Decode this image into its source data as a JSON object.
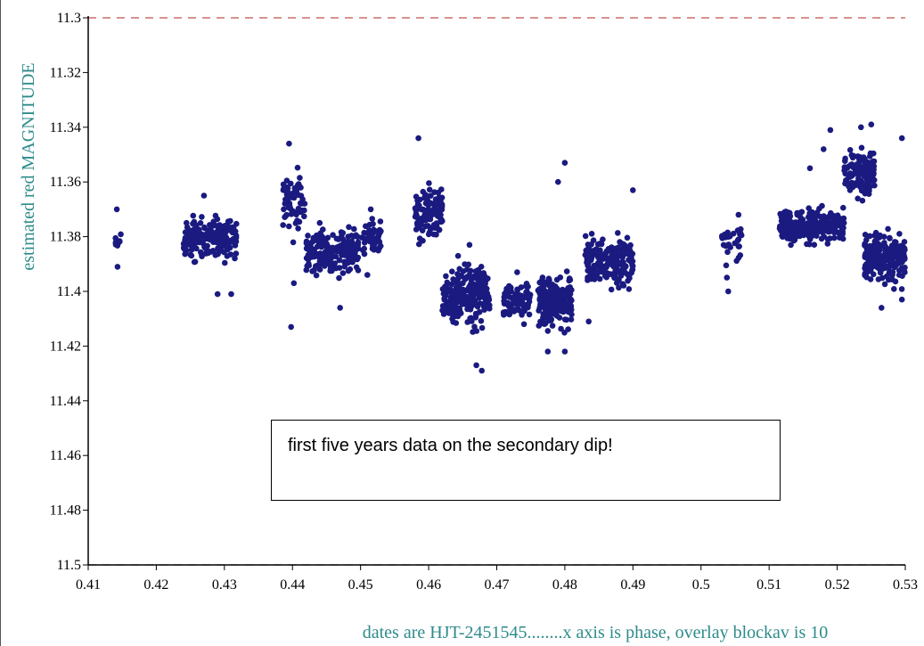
{
  "chart_data": {
    "type": "scatter",
    "ylabel": "estimated red MAGNITUDE",
    "xlabel": "dates are HJT-2451545........x axis is phase, overlay blockav is 10",
    "xlim": [
      0.41,
      0.53
    ],
    "ylim": [
      11.3,
      11.5
    ],
    "y_inverted": true,
    "x_ticks": [
      "0.41",
      "0.42",
      "0.43",
      "0.44",
      "0.45",
      "0.46",
      "0.47",
      "0.48",
      "0.49",
      "0.5",
      "0.51",
      "0.52",
      "0.53"
    ],
    "y_ticks": [
      "11.3",
      "11.32",
      "11.34",
      "11.36",
      "11.38",
      "11.4",
      "11.42",
      "11.44",
      "11.46",
      "11.48",
      "11.5"
    ],
    "reference_lines": [
      11.3,
      11.5
    ],
    "colors": {
      "points": "#1a1a80",
      "reference_line": "#c0504d",
      "ylabel": "#2e8b8b",
      "xlabel": "#2e8b8b"
    },
    "annotation": "first five years data on the secondary dip!",
    "clusters": [
      {
        "x": [
          0.4138,
          0.4148
        ],
        "y_center": 11.381,
        "y_spread": 0.005,
        "n": 10,
        "outliers": [
          [
            0.4142,
            11.37
          ],
          [
            0.4143,
            11.391
          ]
        ]
      },
      {
        "x": [
          0.424,
          0.4318
        ],
        "y_center": 11.381,
        "y_spread": 0.006,
        "n": 190,
        "outliers": [
          [
            0.429,
            11.401
          ],
          [
            0.431,
            11.401
          ],
          [
            0.427,
            11.365
          ]
        ]
      },
      {
        "x": [
          0.4385,
          0.4418
        ],
        "y_center": 11.368,
        "y_spread": 0.008,
        "n": 70,
        "outliers": [
          [
            0.4395,
            11.346
          ],
          [
            0.4402,
            11.397
          ],
          [
            0.4398,
            11.413
          ]
        ]
      },
      {
        "x": [
          0.442,
          0.4497
        ],
        "y_center": 11.386,
        "y_spread": 0.006,
        "n": 190,
        "outliers": [
          [
            0.447,
            11.406
          ],
          [
            0.444,
            11.375
          ]
        ]
      },
      {
        "x": [
          0.45,
          0.453
        ],
        "y_center": 11.381,
        "y_spread": 0.006,
        "n": 45,
        "outliers": [
          [
            0.4515,
            11.37
          ],
          [
            0.451,
            11.394
          ]
        ]
      },
      {
        "x": [
          0.458,
          0.462
        ],
        "y_center": 11.371,
        "y_spread": 0.008,
        "n": 100,
        "outliers": [
          [
            0.4585,
            11.344
          ]
        ]
      },
      {
        "x": [
          0.462,
          0.469
        ],
        "y_center": 11.402,
        "y_spread": 0.009,
        "n": 230,
        "outliers": [
          [
            0.4678,
            11.429
          ],
          [
            0.467,
            11.427
          ],
          [
            0.466,
            11.383
          ]
        ]
      },
      {
        "x": [
          0.471,
          0.475
        ],
        "y_center": 11.403,
        "y_spread": 0.005,
        "n": 90,
        "outliers": [
          [
            0.473,
            11.393
          ],
          [
            0.474,
            11.412
          ]
        ]
      },
      {
        "x": [
          0.476,
          0.481
        ],
        "y_center": 11.404,
        "y_spread": 0.008,
        "n": 200,
        "outliers": [
          [
            0.48,
            11.353
          ],
          [
            0.479,
            11.36
          ],
          [
            0.4775,
            11.422
          ],
          [
            0.48,
            11.422
          ]
        ]
      },
      {
        "x": [
          0.483,
          0.49
        ],
        "y_center": 11.389,
        "y_spread": 0.007,
        "n": 190,
        "outliers": [
          [
            0.49,
            11.363
          ],
          [
            0.4835,
            11.411
          ]
        ]
      },
      {
        "x": [
          0.503,
          0.506
        ],
        "y_center": 11.383,
        "y_spread": 0.006,
        "n": 30,
        "outliers": [
          [
            0.504,
            11.4
          ],
          [
            0.5038,
            11.395
          ],
          [
            0.5055,
            11.372
          ]
        ]
      },
      {
        "x": [
          0.5115,
          0.521
        ],
        "y_center": 11.376,
        "y_spread": 0.005,
        "n": 260,
        "outliers": [
          [
            0.519,
            11.341
          ],
          [
            0.518,
            11.348
          ],
          [
            0.516,
            11.355
          ]
        ]
      },
      {
        "x": [
          0.521,
          0.5255
        ],
        "y_center": 11.357,
        "y_spread": 0.007,
        "n": 120,
        "outliers": [
          [
            0.5235,
            11.34
          ],
          [
            0.525,
            11.339
          ]
        ]
      },
      {
        "x": [
          0.524,
          0.53
        ],
        "y_center": 11.388,
        "y_spread": 0.007,
        "n": 200,
        "outliers": [
          [
            0.5265,
            11.406
          ],
          [
            0.5295,
            11.403
          ],
          [
            0.5295,
            11.344
          ]
        ]
      }
    ]
  }
}
